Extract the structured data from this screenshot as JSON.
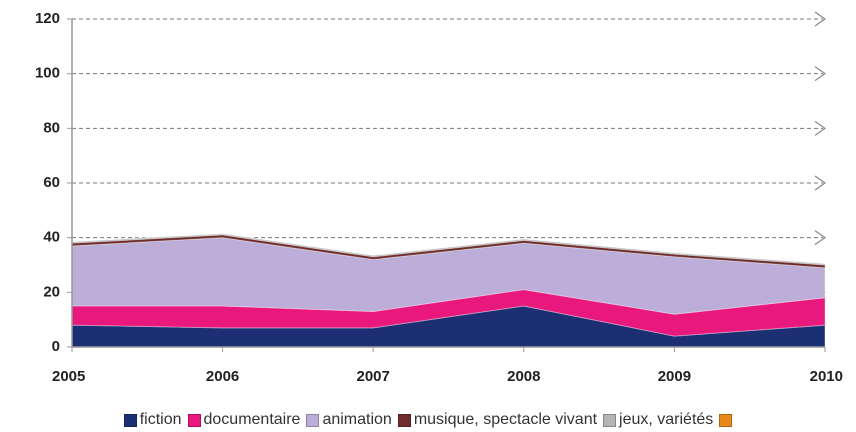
{
  "chart_data": {
    "type": "stacked-area",
    "x": [
      2005,
      2006,
      2007,
      2008,
      2009,
      2010
    ],
    "xlim": [
      2005,
      2010
    ],
    "xticks": [
      2005,
      2006,
      2007,
      2008,
      2009,
      2010
    ],
    "ylim": [
      0,
      120
    ],
    "yticks": [
      0,
      20,
      40,
      60,
      80,
      100,
      120
    ],
    "grid": true,
    "series": [
      {
        "name": "fiction",
        "color": "#1c2f72",
        "values": [
          8,
          7,
          7,
          15,
          4,
          8
        ]
      },
      {
        "name": "documentaire",
        "color": "#e8187c",
        "values": [
          7,
          8,
          6,
          6,
          8,
          10
        ]
      },
      {
        "name": "animation",
        "color": "#bcaed8",
        "values": [
          22,
          25,
          19,
          17,
          21,
          11
        ]
      },
      {
        "name": "musique, spectacle vivant",
        "color": "#6e2c2c",
        "values": [
          1,
          1,
          1,
          1,
          1,
          1
        ]
      },
      {
        "name": "jeux, variétés",
        "color": "#b4b4b4",
        "values": [
          0.5,
          0.5,
          0.5,
          0.5,
          0.5,
          0.5
        ]
      },
      {
        "name": null,
        "color": "#e8891c",
        "values": [
          0,
          0,
          0,
          0,
          0,
          0
        ]
      }
    ]
  }
}
